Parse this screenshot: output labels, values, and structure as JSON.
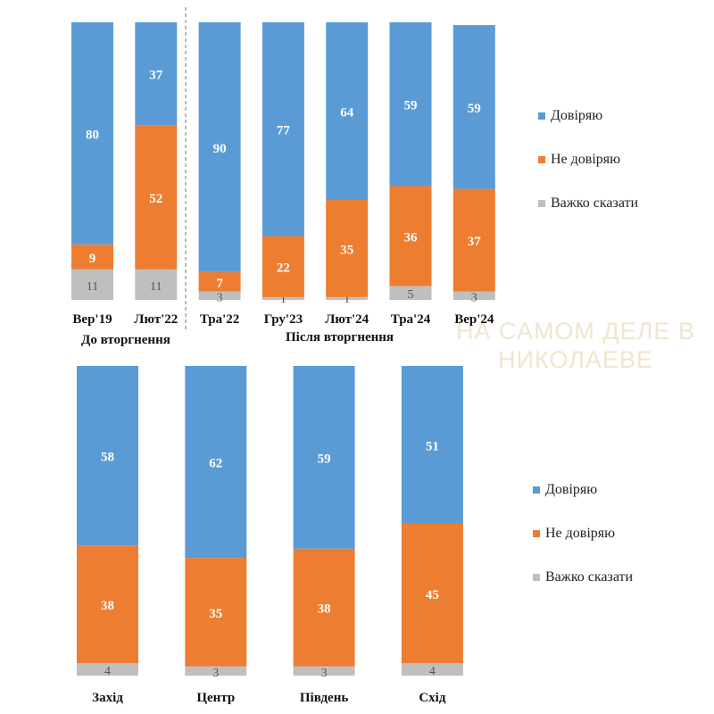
{
  "watermark": {
    "line1": "НА САМОМ ДЕЛЕ В",
    "line2": "НИКОЛАЕВЕ"
  },
  "colors": {
    "trust": "#5b9bd5",
    "distrust": "#ed7d31",
    "hard_to_say": "#bfbfbf"
  },
  "chart_data": [
    {
      "type": "bar",
      "stacked": true,
      "percent_full_scale": true,
      "categories": [
        "Вер'19",
        "Лют'22",
        "Тра'22",
        "Гру'23",
        "Лют'24",
        "Тра'24",
        "Вер'24"
      ],
      "series": [
        {
          "name": "Довіряю",
          "values": [
            80,
            37,
            90,
            77,
            64,
            59,
            59
          ]
        },
        {
          "name": "Не довіряю",
          "values": [
            9,
            52,
            7,
            22,
            35,
            36,
            37
          ]
        },
        {
          "name": "Важко сказати",
          "values": [
            11,
            11,
            3,
            1,
            1,
            5,
            3
          ]
        }
      ],
      "groups": [
        {
          "label": "До вторгнення",
          "categories": [
            "Вер'19",
            "Лют'22"
          ]
        },
        {
          "label": "Після вторгнення",
          "categories": [
            "Тра'22",
            "Гру'23",
            "Лют'24",
            "Тра'24",
            "Вер'24"
          ]
        }
      ],
      "legend": [
        "Довіряю",
        "Не довіряю",
        "Важко сказати"
      ],
      "legend_position": "right"
    },
    {
      "type": "bar",
      "stacked": true,
      "percent_full_scale": true,
      "categories": [
        "Захід",
        "Центр",
        "Південь",
        "Схід"
      ],
      "series": [
        {
          "name": "Довіряю",
          "values": [
            58,
            62,
            59,
            51
          ]
        },
        {
          "name": "Не довіряю",
          "values": [
            38,
            35,
            38,
            45
          ]
        },
        {
          "name": "Важко сказати",
          "values": [
            4,
            3,
            3,
            4
          ]
        }
      ],
      "legend": [
        "Довіряю",
        "Не довіряю",
        "Важко сказати"
      ],
      "legend_position": "right"
    }
  ]
}
